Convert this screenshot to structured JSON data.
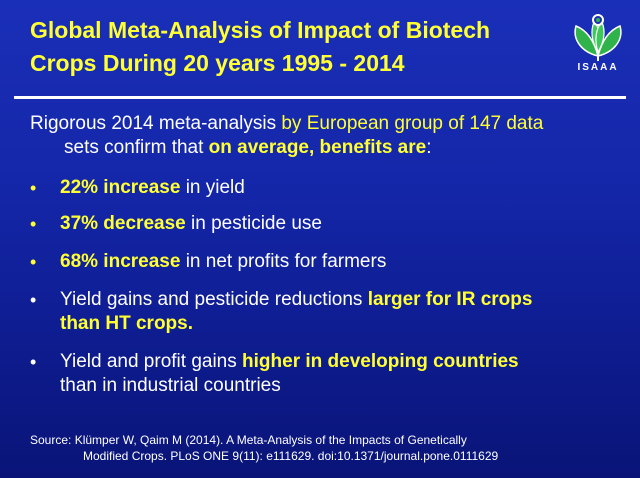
{
  "title": {
    "line1": "Global Meta-Analysis of Impact of Biotech",
    "line2": "Crops During  20 years 1995 - 2014"
  },
  "logo": {
    "text": "ISAAA",
    "icon": "isaaa-plant-logo-icon",
    "colors": {
      "leaf": "#2fb34a",
      "outline": "#ffffff"
    }
  },
  "intro": {
    "part1": "Rigorous 2014 meta-analysis ",
    "part2": "by European group of 147 data",
    "part3": "sets confirm that ",
    "part4": "on average, benefits are",
    "part5": ":"
  },
  "bullets": [
    {
      "bold": "22% increase",
      "rest": " in yield"
    },
    {
      "bold": "37% decrease",
      "rest": " in pesticide use"
    },
    {
      "bold": "68% increase",
      "rest": " in net profits for farmers"
    },
    {
      "pre": "Yield gains and pesticide reductions ",
      "bold1": "larger for IR crops",
      "bold2": "than HT crops."
    },
    {
      "pre": "Yield and profit gains ",
      "bold1": "higher in developing countries",
      "rest2": "than in industrial countries"
    }
  ],
  "bullet_glyph": "•",
  "source": {
    "line1": "Source:  Klümper W, Qaim M (2014). A Meta-Analysis of the Impacts of Genetically",
    "line2": "Modified Crops. PLoS ONE 9(11): e111629. doi:10.1371/journal.pone.0111629"
  },
  "colors": {
    "background": "#1426a8",
    "highlight": "#ffff33",
    "text": "#ffffff"
  }
}
